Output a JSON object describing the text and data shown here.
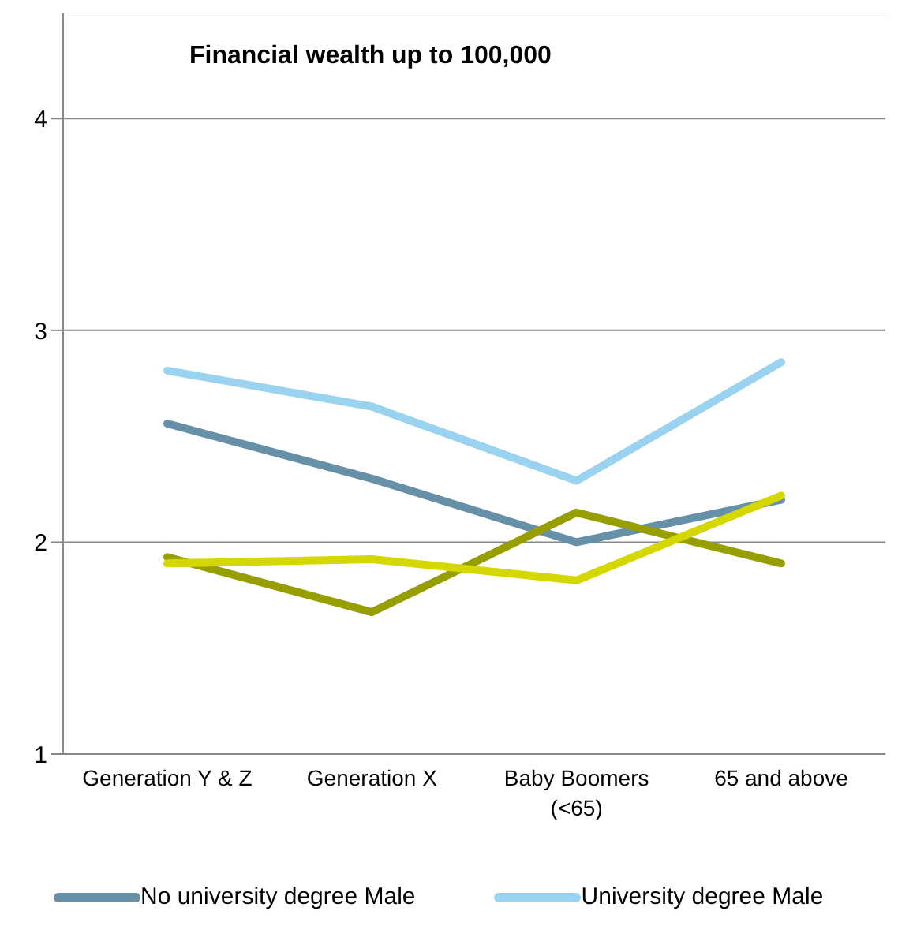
{
  "chart_data": {
    "type": "line",
    "title": "Financial wealth up to 100,000",
    "categories": [
      "Generation Y & Z",
      "Generation X",
      "Baby Boomers (<65)",
      "65 and above"
    ],
    "series": [
      {
        "name": "No university degree Male",
        "color": "#6590a8",
        "values": [
          2.56,
          2.3,
          2.0,
          2.2
        ]
      },
      {
        "name": "University degree Male",
        "color": "#99d3f0",
        "values": [
          2.81,
          2.64,
          2.29,
          2.85
        ]
      },
      {
        "color": "#969e00",
        "values": [
          1.93,
          1.67,
          2.14,
          1.9
        ]
      },
      {
        "color": "#d4d800",
        "values": [
          1.9,
          1.92,
          1.82,
          2.22
        ]
      }
    ],
    "ylim": [
      1,
      4.5
    ],
    "yticks": [
      1,
      2,
      3,
      4
    ],
    "grid": "y",
    "legend": "bottom",
    "marker": "none",
    "line_style": "solid"
  }
}
